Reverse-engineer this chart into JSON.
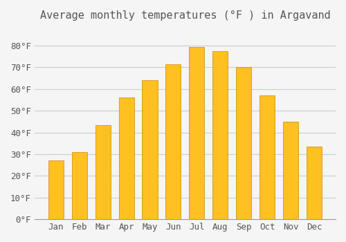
{
  "title": "Average monthly temperatures (°F ) in Argavand",
  "months": [
    "Jan",
    "Feb",
    "Mar",
    "Apr",
    "May",
    "Jun",
    "Jul",
    "Aug",
    "Sep",
    "Oct",
    "Nov",
    "Dec"
  ],
  "values": [
    27,
    31,
    43.5,
    56,
    64,
    71.5,
    79.5,
    77.5,
    70,
    57,
    45,
    33.5
  ],
  "bar_color": "#FFC022",
  "bar_edge_color": "#CC8800",
  "background_color": "#F5F5F5",
  "grid_color": "#CCCCCC",
  "text_color": "#555555",
  "ylim": [
    0,
    88
  ],
  "yticks": [
    0,
    10,
    20,
    30,
    40,
    50,
    60,
    70,
    80
  ],
  "ytick_labels": [
    "0°F",
    "10°F",
    "20°F",
    "30°F",
    "40°F",
    "50°F",
    "60°F",
    "70°F",
    "80°F"
  ],
  "title_fontsize": 11,
  "tick_fontsize": 9,
  "font_family": "monospace"
}
